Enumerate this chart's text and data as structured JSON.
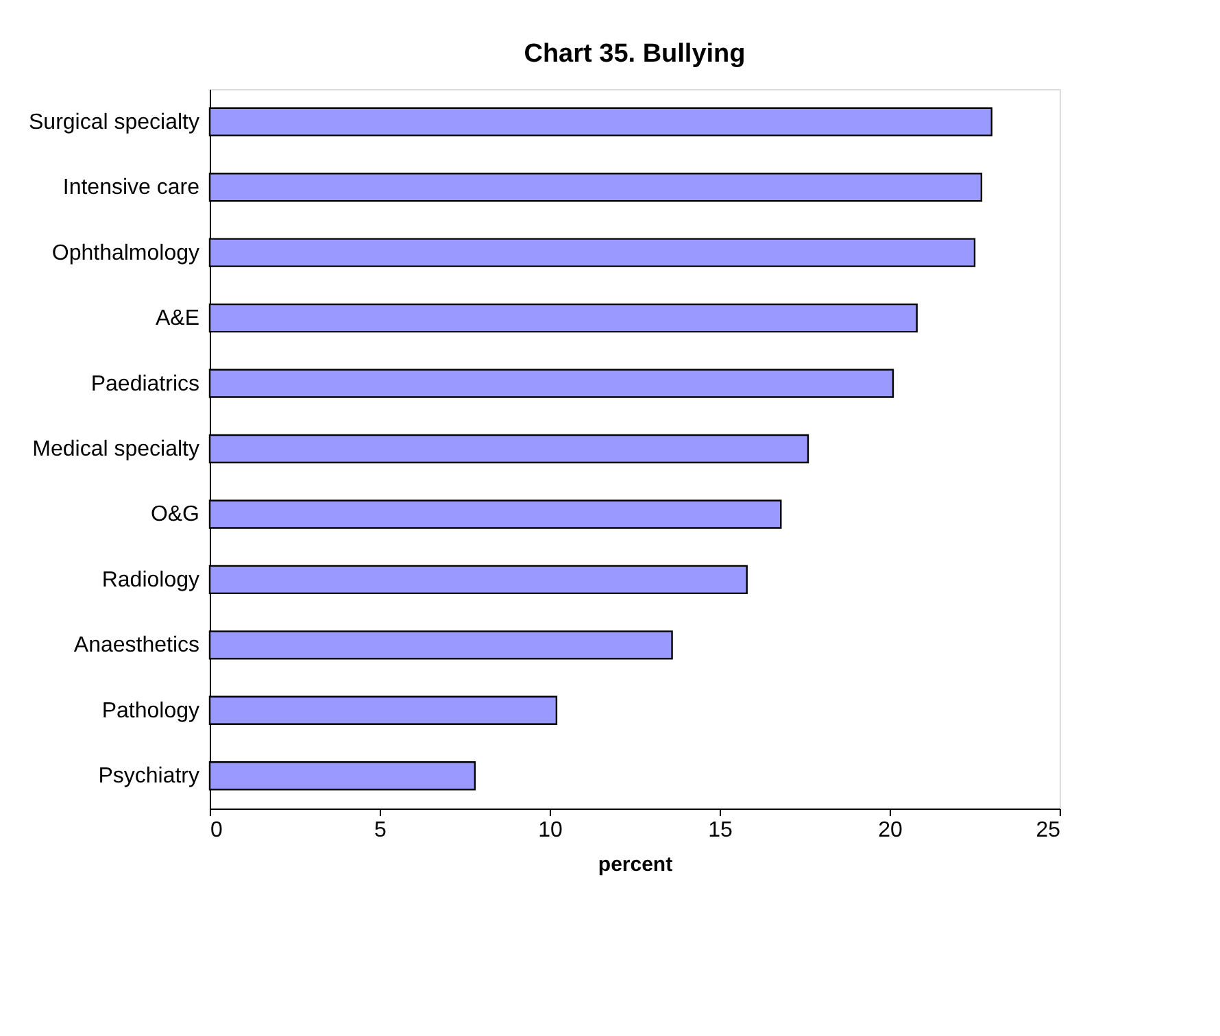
{
  "chart_data": {
    "type": "bar",
    "orientation": "horizontal",
    "title": "Chart 35. Bullying",
    "xlabel": "percent",
    "categories": [
      "Surgical specialty",
      "Intensive care",
      "Ophthalmology",
      "A&E",
      "Paediatrics",
      "Medical specialty",
      "O&G",
      "Radiology",
      "Anaesthetics",
      "Pathology",
      "Psychiatry"
    ],
    "values": [
      23.0,
      22.7,
      22.5,
      20.8,
      20.1,
      17.6,
      16.8,
      15.8,
      13.6,
      10.2,
      7.8
    ],
    "color": "#9999ff",
    "xlim": [
      0,
      25
    ],
    "xticks": [
      0,
      5,
      10,
      15,
      20,
      25
    ],
    "grid": false
  }
}
